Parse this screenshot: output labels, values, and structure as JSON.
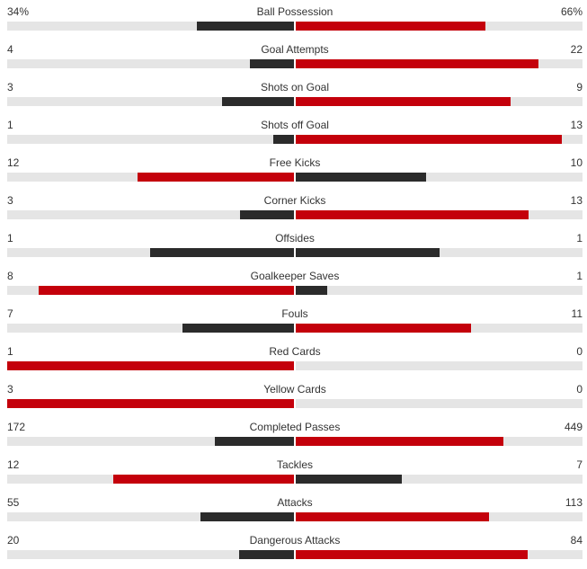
{
  "colors": {
    "leader": "#c4000b",
    "trailer": "#2b2b2b",
    "track": "#e5e5e5"
  },
  "stats": [
    {
      "name": "Ball Possession",
      "home": "34%",
      "away": "66%",
      "home_num": 34,
      "away_num": 66
    },
    {
      "name": "Goal Attempts",
      "home": "4",
      "away": "22",
      "home_num": 4,
      "away_num": 22
    },
    {
      "name": "Shots on Goal",
      "home": "3",
      "away": "9",
      "home_num": 3,
      "away_num": 9
    },
    {
      "name": "Shots off Goal",
      "home": "1",
      "away": "13",
      "home_num": 1,
      "away_num": 13
    },
    {
      "name": "Free Kicks",
      "home": "12",
      "away": "10",
      "home_num": 12,
      "away_num": 10
    },
    {
      "name": "Corner Kicks",
      "home": "3",
      "away": "13",
      "home_num": 3,
      "away_num": 13
    },
    {
      "name": "Offsides",
      "home": "1",
      "away": "1",
      "home_num": 1,
      "away_num": 1
    },
    {
      "name": "Goalkeeper Saves",
      "home": "8",
      "away": "1",
      "home_num": 8,
      "away_num": 1
    },
    {
      "name": "Fouls",
      "home": "7",
      "away": "11",
      "home_num": 7,
      "away_num": 11
    },
    {
      "name": "Red Cards",
      "home": "1",
      "away": "0",
      "home_num": 1,
      "away_num": 0
    },
    {
      "name": "Yellow Cards",
      "home": "3",
      "away": "0",
      "home_num": 3,
      "away_num": 0
    },
    {
      "name": "Completed Passes",
      "home": "172",
      "away": "449",
      "home_num": 172,
      "away_num": 449
    },
    {
      "name": "Tackles",
      "home": "12",
      "away": "7",
      "home_num": 12,
      "away_num": 7
    },
    {
      "name": "Attacks",
      "home": "55",
      "away": "113",
      "home_num": 55,
      "away_num": 113
    },
    {
      "name": "Dangerous Attacks",
      "home": "20",
      "away": "84",
      "home_num": 20,
      "away_num": 84
    }
  ]
}
